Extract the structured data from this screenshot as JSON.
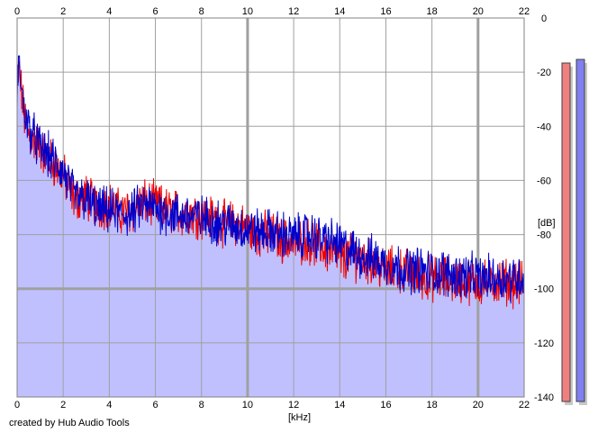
{
  "chart_data": {
    "type": "area",
    "xlabel": "[kHz]",
    "ylabel": "[dB]",
    "xlim": [
      0,
      22
    ],
    "ylim": [
      -140,
      0
    ],
    "x_ticks": [
      0,
      2,
      4,
      6,
      8,
      10,
      12,
      14,
      16,
      18,
      20,
      22
    ],
    "y_ticks": [
      0,
      -20,
      -40,
      -60,
      -80,
      -100,
      -120,
      -140
    ],
    "y_tick_labels": [
      "0",
      "-20",
      "-40",
      "-60",
      "-80",
      "-100",
      "-120",
      "-140"
    ],
    "grid": true,
    "fill_color": "#c0c0ff",
    "series": [
      {
        "color": "#ee0000",
        "x": [
          0,
          0.05,
          0.1,
          0.2,
          0.3,
          0.5,
          0.8,
          1.0,
          1.5,
          2.0,
          2.5,
          3.0,
          3.5,
          4.0,
          4.5,
          5.0,
          5.5,
          6.0,
          6.5,
          7.0,
          7.5,
          8.0,
          8.5,
          9.0,
          9.5,
          10.0,
          10.5,
          11.0,
          11.5,
          12.0,
          12.5,
          13.0,
          13.5,
          14.0,
          14.5,
          15.0,
          15.5,
          16.0,
          16.5,
          17.0,
          17.5,
          18.0,
          18.5,
          19.0,
          19.5,
          20.0,
          20.5,
          21.0,
          21.5,
          22.0
        ],
        "y": [
          -30,
          -22,
          -20,
          -28,
          -36,
          -43,
          -46,
          -48,
          -53,
          -58,
          -67,
          -66,
          -70,
          -69,
          -72,
          -71,
          -68,
          -69,
          -71,
          -72,
          -72,
          -73,
          -74,
          -76,
          -76,
          -78,
          -80,
          -80,
          -82,
          -83,
          -82,
          -84,
          -86,
          -89,
          -88,
          -89,
          -91,
          -93,
          -93,
          -94,
          -96,
          -96,
          -96,
          -97,
          -97,
          -98,
          -98,
          -97,
          -98,
          -98
        ]
      },
      {
        "color": "#0000cc",
        "x": [
          0,
          0.05,
          0.1,
          0.2,
          0.3,
          0.5,
          0.8,
          1.0,
          1.5,
          2.0,
          2.5,
          3.0,
          3.5,
          4.0,
          4.5,
          5.0,
          5.5,
          6.0,
          6.5,
          7.0,
          7.5,
          8.0,
          8.5,
          9.0,
          9.5,
          10.0,
          10.5,
          11.0,
          11.5,
          12.0,
          12.5,
          13.0,
          13.5,
          14.0,
          14.5,
          15.0,
          15.5,
          16.0,
          16.5,
          17.0,
          17.5,
          18.0,
          18.5,
          19.0,
          19.5,
          20.0,
          20.5,
          21.0,
          21.5,
          22.0
        ],
        "y": [
          -28,
          -18,
          -17,
          -26,
          -34,
          -40,
          -45,
          -48,
          -52,
          -57,
          -66,
          -67,
          -71,
          -71,
          -73,
          -72,
          -69,
          -70,
          -72,
          -73,
          -73,
          -74,
          -75,
          -76,
          -77,
          -78,
          -79,
          -79,
          -80,
          -81,
          -80,
          -81,
          -82,
          -84,
          -86,
          -88,
          -89,
          -91,
          -92,
          -93,
          -93,
          -94,
          -94,
          -95,
          -95,
          -96,
          -96,
          -96,
          -96,
          -96
        ]
      }
    ],
    "level_meters": [
      {
        "color": "#f08080",
        "level": 0.94
      },
      {
        "color": "#8080f0",
        "level": 0.95
      }
    ]
  },
  "footer": {
    "credit": "created by Hub Audio Tools"
  }
}
